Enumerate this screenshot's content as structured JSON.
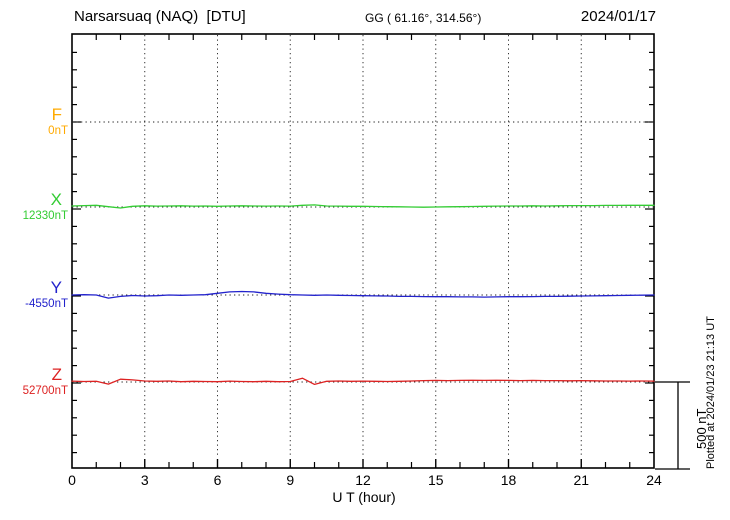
{
  "header": {
    "station_title": "Narsarsuaq (NAQ)  [DTU]",
    "coords": "GG ( 61.16°, 314.56°)",
    "date": "2024/01/17"
  },
  "channels": [
    {
      "id": "F",
      "label": "F",
      "value": "0nT",
      "color": "#FFAA00"
    },
    {
      "id": "X",
      "label": "X",
      "value": "12330nT",
      "color": "#33CC33"
    },
    {
      "id": "Y",
      "label": "Y",
      "value": "-4550nT",
      "color": "#2222CC"
    },
    {
      "id": "Z",
      "label": "Z",
      "value": "52700nT",
      "color": "#DD2222"
    }
  ],
  "axis": {
    "x_ticks": [
      0,
      3,
      6,
      9,
      12,
      15,
      18,
      21,
      24
    ],
    "x_label": "U T (hour)"
  },
  "scale_bar": {
    "label": "500 nT",
    "nT": 500
  },
  "footer_note": "Plotted at 2024/01/23 21:13 UT",
  "chart_data": {
    "type": "line",
    "title": "Narsarsuaq (NAQ) [DTU] magnetogram 2024/01/17",
    "xlabel": "U T (hour)",
    "x_range": [
      0,
      24
    ],
    "x_tick_step_hours": 3,
    "x_minor_tick_hours": 1,
    "y_scale_bar_nT": 500,
    "grid": "dotted vertical lines every 3 h; dotted horizontal baseline per component",
    "x_start": 0,
    "x_step_hours": 0.5,
    "series": [
      {
        "name": "F",
        "baseline_nT": 0,
        "color": "#FFAA00",
        "offsets_nT": []
      },
      {
        "name": "X",
        "baseline_nT": 12330,
        "color": "#33CC33",
        "offsets_nT": [
          6,
          8,
          10,
          2,
          -6,
          4,
          7,
          5,
          6,
          7,
          5,
          6,
          4,
          6,
          7,
          6,
          5,
          6,
          5,
          10,
          12,
          6,
          5,
          4,
          4,
          3,
          2,
          1,
          0,
          -1,
          0,
          1,
          2,
          3,
          4,
          5,
          6,
          6,
          7,
          6,
          7,
          8,
          8,
          8,
          9,
          9,
          10,
          10,
          10
        ]
      },
      {
        "name": "Y",
        "baseline_nT": -4550,
        "color": "#2222CC",
        "offsets_nT": [
          0,
          2,
          0,
          -18,
          -8,
          -3,
          -6,
          -4,
          0,
          -2,
          0,
          2,
          10,
          18,
          20,
          18,
          10,
          5,
          2,
          0,
          -2,
          0,
          -2,
          -3,
          -4,
          -5,
          -6,
          -8,
          -8,
          -9,
          -10,
          -10,
          -11,
          -11,
          -12,
          -11,
          -10,
          -10,
          -9,
          -8,
          -8,
          -7,
          -6,
          -5,
          -4,
          -3,
          -2,
          -1,
          0
        ]
      },
      {
        "name": "Z",
        "baseline_nT": 52700,
        "color": "#DD2222",
        "offsets_nT": [
          5,
          3,
          4,
          -12,
          16,
          12,
          6,
          4,
          6,
          2,
          4,
          3,
          2,
          5,
          3,
          2,
          4,
          2,
          3,
          22,
          -14,
          4,
          6,
          4,
          5,
          4,
          3,
          4,
          6,
          8,
          9,
          8,
          9,
          10,
          9,
          10,
          9,
          8,
          9,
          8,
          8,
          7,
          8,
          7,
          6,
          6,
          5,
          6,
          5
        ]
      }
    ]
  }
}
